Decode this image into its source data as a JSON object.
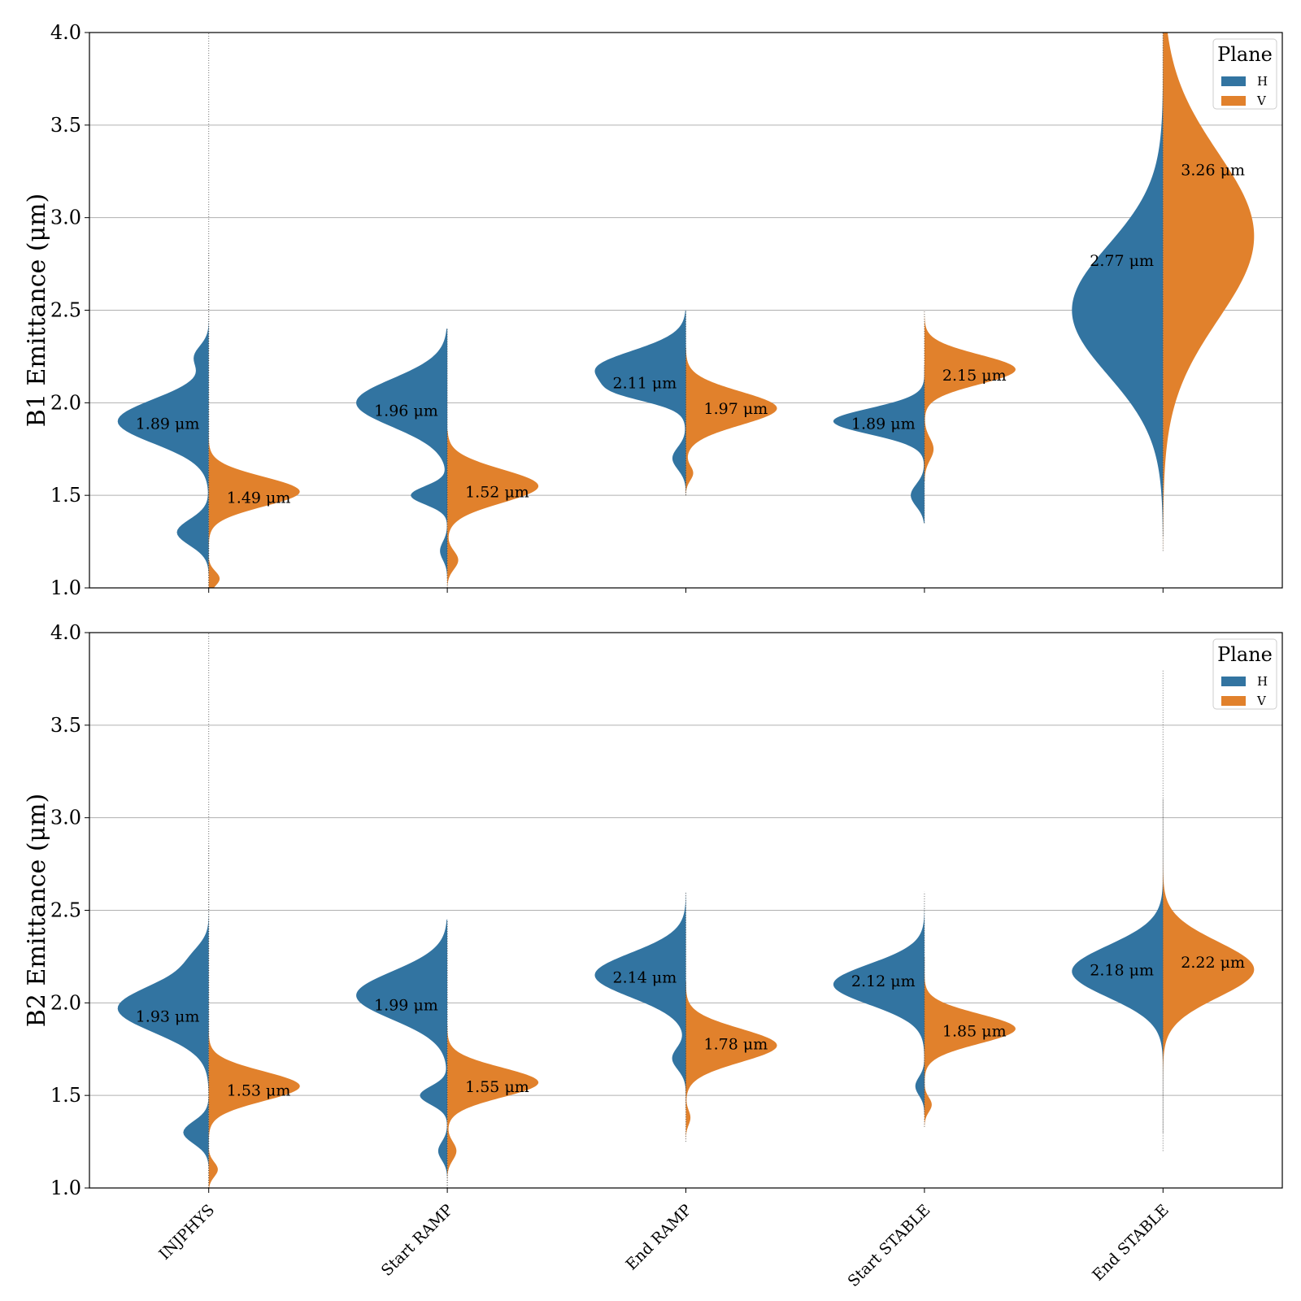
{
  "chart_data": [
    {
      "type": "violin",
      "panel": "B1",
      "ylabel": "B1 Emittance (μm)",
      "ylim": [
        1.0,
        4.0
      ],
      "yticks": [
        "1.0",
        "1.5",
        "2.0",
        "2.5",
        "3.0",
        "3.5",
        "4.0"
      ],
      "categories": [
        "INJPHYS",
        "Start RAMP",
        "End RAMP",
        "Start STABLE",
        "End STABLE"
      ],
      "grid": true,
      "legend": {
        "title": "Plane",
        "position": "top-right",
        "entries": [
          "H",
          "V"
        ]
      },
      "series": [
        {
          "name": "H",
          "color": "#3274a1",
          "medians": [
            1.89,
            1.96,
            2.11,
            1.89,
            2.77
          ],
          "labels": [
            "1.89 μm",
            "1.96 μm",
            "2.11 μm",
            "1.89 μm",
            "2.77 μm"
          ],
          "distributions": [
            {
              "range": [
                1.0,
                4.0
              ],
              "modes": [
                {
                  "mu": 1.9,
                  "sd": 0.12,
                  "w": 1.0
                },
                {
                  "mu": 1.3,
                  "sd": 0.07,
                  "w": 0.35
                },
                {
                  "mu": 2.25,
                  "sd": 0.06,
                  "w": 0.15
                }
              ]
            },
            {
              "range": [
                1.05,
                2.4
              ],
              "modes": [
                {
                  "mu": 2.0,
                  "sd": 0.13,
                  "w": 1.0
                },
                {
                  "mu": 1.5,
                  "sd": 0.05,
                  "w": 0.4
                },
                {
                  "mu": 1.2,
                  "sd": 0.05,
                  "w": 0.08
                }
              ]
            },
            {
              "range": [
                1.5,
                2.5
              ],
              "modes": [
                {
                  "mu": 2.18,
                  "sd": 0.1,
                  "w": 1.0
                },
                {
                  "mu": 2.05,
                  "sd": 0.05,
                  "w": 0.35
                },
                {
                  "mu": 1.7,
                  "sd": 0.06,
                  "w": 0.15
                }
              ]
            },
            {
              "range": [
                1.35,
                2.2
              ],
              "modes": [
                {
                  "mu": 1.9,
                  "sd": 0.07,
                  "w": 1.0
                },
                {
                  "mu": 1.5,
                  "sd": 0.06,
                  "w": 0.15
                }
              ]
            },
            {
              "range": [
                1.28,
                4.0
              ],
              "modes": [
                {
                  "mu": 2.5,
                  "sd": 0.35,
                  "w": 1.0
                }
              ]
            }
          ]
        },
        {
          "name": "V",
          "color": "#e1812c",
          "medians": [
            1.49,
            1.52,
            1.97,
            2.15,
            3.26
          ],
          "labels": [
            "1.49 μm",
            "1.52 μm",
            "1.97 μm",
            "2.15 μm",
            "3.26 μm"
          ],
          "distributions": [
            {
              "range": [
                1.0,
                2.82
              ],
              "modes": [
                {
                  "mu": 1.52,
                  "sd": 0.08,
                  "w": 1.0
                },
                {
                  "mu": 1.05,
                  "sd": 0.04,
                  "w": 0.12
                }
              ]
            },
            {
              "range": [
                1.0,
                1.85
              ],
              "modes": [
                {
                  "mu": 1.55,
                  "sd": 0.09,
                  "w": 1.0
                },
                {
                  "mu": 1.15,
                  "sd": 0.05,
                  "w": 0.12
                }
              ]
            },
            {
              "range": [
                1.5,
                2.3
              ],
              "modes": [
                {
                  "mu": 1.97,
                  "sd": 0.09,
                  "w": 1.0
                },
                {
                  "mu": 1.62,
                  "sd": 0.04,
                  "w": 0.08
                }
              ]
            },
            {
              "range": [
                1.58,
                2.5
              ],
              "modes": [
                {
                  "mu": 2.18,
                  "sd": 0.08,
                  "w": 1.0
                },
                {
                  "mu": 1.75,
                  "sd": 0.06,
                  "w": 0.1
                }
              ]
            },
            {
              "range": [
                1.2,
                4.0
              ],
              "modes": [
                {
                  "mu": 2.9,
                  "sd": 0.45,
                  "w": 1.0
                }
              ]
            }
          ]
        }
      ]
    },
    {
      "type": "violin",
      "panel": "B2",
      "ylabel": "B2 Emittance (μm)",
      "ylim": [
        1.0,
        4.0
      ],
      "yticks": [
        "1.0",
        "1.5",
        "2.0",
        "2.5",
        "3.0",
        "3.5",
        "4.0"
      ],
      "categories": [
        "INJPHYS",
        "Start RAMP",
        "End RAMP",
        "Start STABLE",
        "End STABLE"
      ],
      "grid": true,
      "legend": {
        "title": "Plane",
        "position": "top-right",
        "entries": [
          "H",
          "V"
        ]
      },
      "series": [
        {
          "name": "H",
          "color": "#3274a1",
          "medians": [
            1.93,
            1.99,
            2.14,
            2.12,
            2.18
          ],
          "labels": [
            "1.93 μm",
            "1.99 μm",
            "2.14 μm",
            "2.12 μm",
            "2.18 μm"
          ],
          "distributions": [
            {
              "range": [
                1.0,
                4.0
              ],
              "modes": [
                {
                  "mu": 1.97,
                  "sd": 0.13,
                  "w": 1.0
                },
                {
                  "mu": 1.3,
                  "sd": 0.06,
                  "w": 0.28
                },
                {
                  "mu": 2.25,
                  "sd": 0.07,
                  "w": 0.12
                }
              ]
            },
            {
              "range": [
                1.0,
                2.45
              ],
              "modes": [
                {
                  "mu": 2.04,
                  "sd": 0.13,
                  "w": 1.0
                },
                {
                  "mu": 1.5,
                  "sd": 0.05,
                  "w": 0.3
                },
                {
                  "mu": 1.2,
                  "sd": 0.05,
                  "w": 0.1
                }
              ]
            },
            {
              "range": [
                1.43,
                2.6
              ],
              "modes": [
                {
                  "mu": 2.15,
                  "sd": 0.12,
                  "w": 1.0
                },
                {
                  "mu": 1.7,
                  "sd": 0.06,
                  "w": 0.15
                }
              ]
            },
            {
              "range": [
                1.4,
                2.6
              ],
              "modes": [
                {
                  "mu": 2.1,
                  "sd": 0.11,
                  "w": 1.0
                },
                {
                  "mu": 1.55,
                  "sd": 0.05,
                  "w": 0.1
                }
              ]
            },
            {
              "range": [
                1.3,
                3.8
              ],
              "modes": [
                {
                  "mu": 2.17,
                  "sd": 0.14,
                  "w": 1.0
                }
              ]
            }
          ]
        },
        {
          "name": "V",
          "color": "#e1812c",
          "medians": [
            1.53,
            1.55,
            1.78,
            1.85,
            2.22
          ],
          "labels": [
            "1.53 μm",
            "1.55 μm",
            "1.78 μm",
            "1.85 μm",
            "2.22 μm"
          ],
          "distributions": [
            {
              "range": [
                1.0,
                2.85
              ],
              "modes": [
                {
                  "mu": 1.55,
                  "sd": 0.08,
                  "w": 1.0
                },
                {
                  "mu": 1.1,
                  "sd": 0.04,
                  "w": 0.1
                }
              ]
            },
            {
              "range": [
                1.0,
                1.88
              ],
              "modes": [
                {
                  "mu": 1.57,
                  "sd": 0.08,
                  "w": 1.0
                },
                {
                  "mu": 1.2,
                  "sd": 0.05,
                  "w": 0.1
                }
              ]
            },
            {
              "range": [
                1.25,
                2.12
              ],
              "modes": [
                {
                  "mu": 1.77,
                  "sd": 0.09,
                  "w": 1.0
                },
                {
                  "mu": 1.38,
                  "sd": 0.04,
                  "w": 0.05
                }
              ]
            },
            {
              "range": [
                1.33,
                2.25
              ],
              "modes": [
                {
                  "mu": 1.86,
                  "sd": 0.08,
                  "w": 1.0
                },
                {
                  "mu": 1.45,
                  "sd": 0.04,
                  "w": 0.08
                }
              ]
            },
            {
              "range": [
                1.2,
                3.1
              ],
              "modes": [
                {
                  "mu": 2.18,
                  "sd": 0.15,
                  "w": 1.0
                }
              ]
            }
          ]
        }
      ]
    }
  ]
}
